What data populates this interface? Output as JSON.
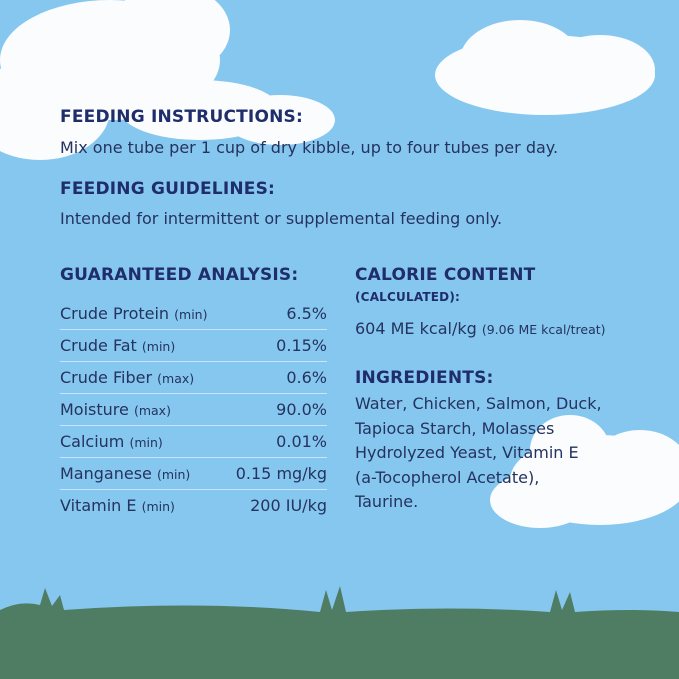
{
  "feeding_instructions": {
    "title": "FEEDING INSTRUCTIONS:",
    "text": "Mix one tube per 1 cup of dry kibble, up to four tubes per day."
  },
  "feeding_guidelines": {
    "title": "FEEDING GUIDELINES:",
    "text": "Intended for intermittent or supplemental feeding only."
  },
  "guaranteed_analysis": {
    "title": "GUARANTEED ANALYSIS:",
    "rows": [
      {
        "name": "Crude Protein",
        "qualifier": "(min)",
        "value": "6.5%"
      },
      {
        "name": "Crude Fat",
        "qualifier": "(min)",
        "value": "0.15%"
      },
      {
        "name": "Crude Fiber",
        "qualifier": "(max)",
        "value": "0.6%"
      },
      {
        "name": "Moisture",
        "qualifier": "(max)",
        "value": "90.0%"
      },
      {
        "name": "Calcium",
        "qualifier": "(min)",
        "value": "0.01%"
      },
      {
        "name": "Manganese",
        "qualifier": "(min)",
        "value": "0.15 mg/kg"
      },
      {
        "name": "Vitamin E",
        "qualifier": "(min)",
        "value": "200 IU/kg"
      }
    ]
  },
  "calorie_content": {
    "title": "CALORIE CONTENT",
    "subtitle": "(CALCULATED):",
    "value": "604 ME kcal/kg",
    "note": "(9.06 ME kcal/treat)"
  },
  "ingredients": {
    "title": "INGREDIENTS:",
    "text": "Water, Chicken, Salmon, Duck, Tapioca Starch, Molasses Hydrolyzed Yeast, Vitamin E (a-Tocopherol Acetate), Taurine."
  }
}
